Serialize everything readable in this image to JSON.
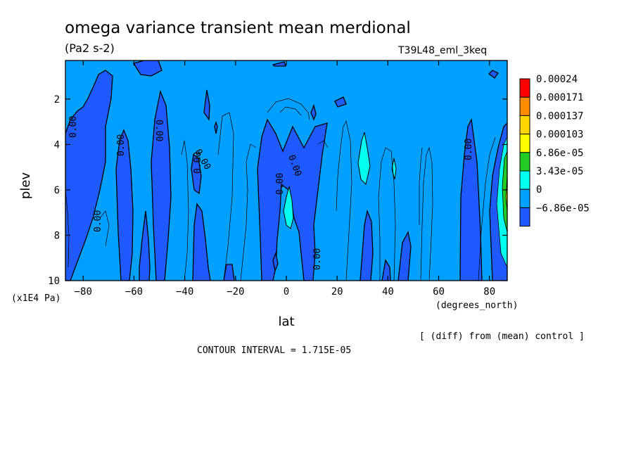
{
  "chart_data": {
    "type": "contour",
    "title": "omega variance transient mean merdional",
    "units": "(Pa2 s-2)",
    "experiment": "T39L48_eml_3keq",
    "xlabel": "lat",
    "xunits": "(degrees_north)",
    "ylabel": "plev",
    "yunits": "(x1E4 Pa)",
    "xlim": [
      -87,
      87
    ],
    "ylim": [
      10,
      0.3
    ],
    "xticks": [
      -80,
      -60,
      -40,
      -20,
      0,
      20,
      40,
      60,
      80
    ],
    "yticks": [
      2,
      4,
      6,
      8,
      10
    ],
    "contour_labels": [
      "0.00",
      "0.00",
      "0.00",
      "0.00",
      "0.00",
      "0.00",
      "0.00",
      "0.00",
      "0.00",
      "0.00"
    ],
    "legend": {
      "levels": [
        "0.00024",
        "0.000171",
        "0.000137",
        "0.000103",
        "6.86e-05",
        "3.43e-05",
        "0",
        "-6.86e-05"
      ],
      "colors": [
        "#ff0000",
        "#ff8c00",
        "#ffd700",
        "#ffff00",
        "#22cc22",
        "#00ffee",
        "#00a0ff",
        "#1e5aff"
      ]
    },
    "note": "[ (diff) from (mean) control ]",
    "contour_interval": "CONTOUR INTERVAL = 1.715E-05"
  }
}
